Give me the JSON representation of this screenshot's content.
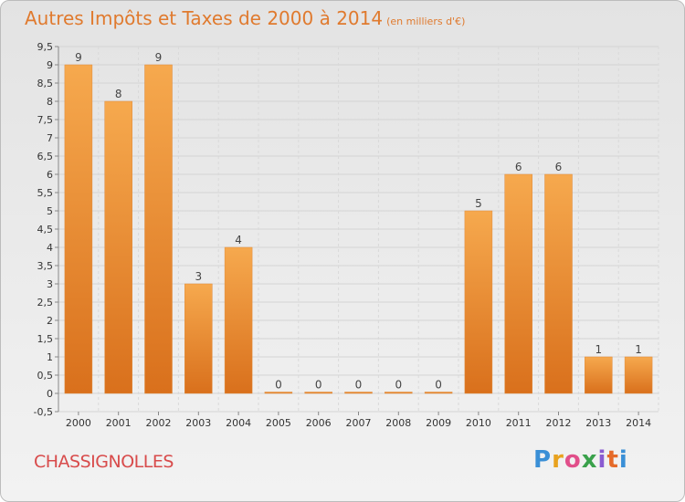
{
  "header": {
    "title": "Autres Impôts et Taxes de 2000 à 2014",
    "unit": "(en milliers d'€)"
  },
  "footer": {
    "commune": "CHASSIGNOLLES",
    "logo": [
      {
        "char": "P",
        "color": "#3a8fd6"
      },
      {
        "char": "r",
        "color": "#e8a21f"
      },
      {
        "char": "o",
        "color": "#e14f8a"
      },
      {
        "char": "x",
        "color": "#3aa14b"
      },
      {
        "char": "i",
        "color": "#8a5bd1"
      },
      {
        "char": "t",
        "color": "#e56b2a"
      },
      {
        "char": "i",
        "color": "#3a8fd6"
      }
    ]
  },
  "chart_data": {
    "type": "bar",
    "title": "Autres Impôts et Taxes de 2000 à 2014",
    "subtitle": "(en milliers d'€)",
    "xlabel": "",
    "ylabel": "",
    "categories": [
      "2000",
      "2001",
      "2002",
      "2003",
      "2004",
      "2005",
      "2006",
      "2007",
      "2008",
      "2009",
      "2010",
      "2011",
      "2012",
      "2013",
      "2014"
    ],
    "values": [
      9,
      8,
      9,
      3,
      4,
      0,
      0,
      0,
      0,
      0,
      5,
      6,
      6,
      1,
      1
    ],
    "ylim": [
      -0.5,
      9.5
    ],
    "yticks": [
      "-0,5",
      "0",
      "0,5",
      "1",
      "1,5",
      "2",
      "2,5",
      "3",
      "3,5",
      "4",
      "4,5",
      "5",
      "5,5",
      "6",
      "6,5",
      "7",
      "7,5",
      "8",
      "8,5",
      "9",
      "9,5"
    ],
    "grid": true,
    "bar_color": "#f08a2a"
  }
}
